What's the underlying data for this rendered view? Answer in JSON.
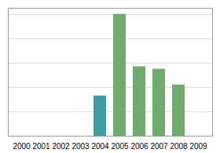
{
  "chart_data": {
    "type": "bar",
    "categories": [
      "2000",
      "2001",
      "2002",
      "2003",
      "2004",
      "2005",
      "2006",
      "2007",
      "2008",
      "2009"
    ],
    "values": [
      0,
      0,
      0,
      0,
      33,
      100,
      57,
      55,
      42,
      0
    ],
    "colors": [
      "#7ab5a0",
      "#7ab5a0",
      "#7ab5a0",
      "#7ab5a0",
      "#3d9da0",
      "#72ab6e",
      "#72ab6e",
      "#72ab6e",
      "#72ab6e",
      "#7ab5a0"
    ],
    "ylim": [
      0,
      105
    ],
    "yticks": [
      20,
      40,
      60,
      80,
      100
    ],
    "grid": true,
    "tick_labels": "x"
  }
}
